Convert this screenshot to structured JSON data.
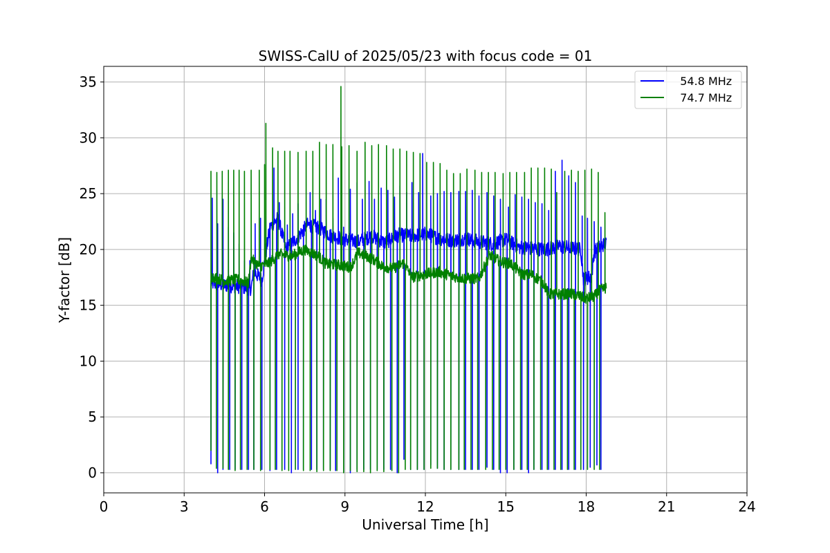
{
  "chart_data": {
    "type": "line",
    "title": "SWISS-CalU of 2025/05/23 with focus code = 01",
    "xlabel": "Universal Time [h]",
    "ylabel": "Y-factor [dB]",
    "xlim": [
      0,
      24
    ],
    "ylim": [
      -1.8,
      36.4
    ],
    "xticks": [
      0,
      3,
      6,
      9,
      12,
      15,
      18,
      21,
      24
    ],
    "yticks": [
      0,
      5,
      10,
      15,
      20,
      25,
      30,
      35
    ],
    "grid": true,
    "legend_position": "top-right",
    "series": [
      {
        "name": "   54.8 MHz",
        "color": "#0000ff",
        "baseline": [
          [
            4.0,
            17.0
          ],
          [
            4.5,
            16.8
          ],
          [
            5.0,
            16.7
          ],
          [
            5.5,
            16.5
          ],
          [
            5.6,
            18.0
          ],
          [
            5.9,
            17.3
          ],
          [
            6.2,
            22.0
          ],
          [
            6.5,
            22.8
          ],
          [
            6.8,
            20.0
          ],
          [
            7.2,
            21.0
          ],
          [
            7.6,
            22.2
          ],
          [
            8.0,
            22.0
          ],
          [
            8.5,
            21.2
          ],
          [
            9.0,
            20.9
          ],
          [
            9.5,
            20.7
          ],
          [
            10.0,
            21.2
          ],
          [
            10.5,
            20.6
          ],
          [
            11.0,
            21.3
          ],
          [
            11.5,
            21.2
          ],
          [
            12.0,
            21.4
          ],
          [
            12.5,
            21.0
          ],
          [
            13.0,
            20.8
          ],
          [
            13.5,
            21.0
          ],
          [
            14.0,
            20.7
          ],
          [
            14.5,
            20.5
          ],
          [
            15.0,
            20.9
          ],
          [
            15.5,
            20.2
          ],
          [
            16.0,
            20.1
          ],
          [
            16.5,
            20.0
          ],
          [
            17.0,
            20.3
          ],
          [
            17.5,
            20.1
          ],
          [
            17.8,
            20.0
          ],
          [
            17.9,
            17.3
          ],
          [
            18.2,
            17.6
          ],
          [
            18.3,
            19.8
          ],
          [
            18.6,
            20.4
          ],
          [
            18.75,
            20.5
          ]
        ],
        "spikes": [
          [
            4.05,
            24.6
          ],
          [
            4.25,
            22.3
          ],
          [
            4.45,
            24.5
          ],
          [
            4.65,
            22.0
          ],
          [
            4.85,
            21.5
          ],
          [
            5.05,
            20.5
          ],
          [
            5.25,
            19.0
          ],
          [
            5.45,
            19.0
          ],
          [
            5.65,
            22.3
          ],
          [
            5.85,
            22.8
          ],
          [
            6.05,
            20.5
          ],
          [
            6.35,
            27.3
          ],
          [
            6.55,
            24.2
          ],
          [
            6.85,
            22.2
          ],
          [
            7.05,
            23.2
          ],
          [
            7.25,
            24.1
          ],
          [
            7.45,
            22.2
          ],
          [
            7.7,
            25.1
          ],
          [
            7.9,
            23.5
          ],
          [
            8.1,
            24.5
          ],
          [
            8.3,
            24.5
          ],
          [
            8.55,
            22.8
          ],
          [
            8.75,
            26.4
          ],
          [
            8.95,
            22.0
          ],
          [
            9.2,
            25.4
          ],
          [
            9.45,
            26.0
          ],
          [
            9.65,
            24.5
          ],
          [
            9.9,
            26.1
          ],
          [
            10.1,
            24.5
          ],
          [
            10.35,
            25.5
          ],
          [
            10.6,
            25.3
          ],
          [
            10.85,
            24.7
          ],
          [
            11.05,
            25.7
          ],
          [
            11.3,
            25.1
          ],
          [
            11.5,
            26.0
          ],
          [
            11.75,
            25.1
          ],
          [
            11.9,
            28.6
          ],
          [
            12.2,
            24.8
          ],
          [
            12.45,
            25.0
          ],
          [
            12.7,
            25.2
          ],
          [
            12.95,
            25.1
          ],
          [
            13.25,
            25.2
          ],
          [
            13.5,
            25.2
          ],
          [
            13.75,
            25.3
          ],
          [
            14.0,
            24.8
          ],
          [
            14.3,
            25.1
          ],
          [
            14.55,
            24.8
          ],
          [
            14.8,
            24.5
          ],
          [
            15.1,
            23.8
          ],
          [
            15.35,
            24.9
          ],
          [
            15.6,
            24.7
          ],
          [
            15.85,
            24.5
          ],
          [
            16.1,
            24.2
          ],
          [
            16.35,
            24.1
          ],
          [
            16.6,
            23.5
          ],
          [
            16.85,
            27.0
          ],
          [
            17.1,
            28.0
          ],
          [
            17.35,
            26.6
          ],
          [
            17.6,
            26.0
          ],
          [
            17.85,
            23.0
          ],
          [
            18.05,
            22.8
          ],
          [
            18.3,
            22.5
          ],
          [
            18.55,
            22.0
          ]
        ],
        "dips": [
          [
            4.0,
            0.8
          ],
          [
            4.25,
            0.0
          ],
          [
            4.45,
            0.3
          ],
          [
            4.7,
            0.3
          ],
          [
            4.9,
            0.3
          ],
          [
            5.15,
            0.3
          ],
          [
            5.4,
            0.3
          ],
          [
            5.6,
            0.3
          ],
          [
            5.9,
            0.3
          ],
          [
            6.2,
            0.2
          ],
          [
            6.45,
            0.3
          ],
          [
            6.75,
            0.3
          ],
          [
            7.0,
            0.0
          ],
          [
            7.25,
            0.3
          ],
          [
            7.45,
            0.3
          ],
          [
            7.75,
            0.3
          ],
          [
            7.95,
            0.3
          ],
          [
            8.2,
            0.3
          ],
          [
            8.45,
            0.3
          ],
          [
            8.65,
            0.2
          ],
          [
            8.95,
            0.1
          ],
          [
            9.2,
            0.0
          ],
          [
            9.45,
            0.3
          ],
          [
            9.7,
            0.3
          ],
          [
            9.95,
            0.3
          ],
          [
            10.2,
            0.3
          ],
          [
            10.45,
            0.3
          ],
          [
            10.7,
            0.3
          ],
          [
            10.95,
            0.0
          ],
          [
            11.2,
            1.2
          ],
          [
            11.45,
            0.3
          ],
          [
            11.7,
            0.3
          ],
          [
            11.95,
            0.3
          ],
          [
            12.2,
            0.7
          ],
          [
            12.45,
            0.4
          ],
          [
            12.7,
            0.3
          ],
          [
            12.95,
            0.3
          ],
          [
            13.25,
            0.3
          ],
          [
            13.5,
            0.3
          ],
          [
            13.75,
            0.3
          ],
          [
            14.0,
            0.3
          ],
          [
            14.3,
            0.5
          ],
          [
            14.55,
            0.3
          ],
          [
            14.8,
            0.0
          ],
          [
            15.05,
            0.0
          ],
          [
            15.3,
            0.3
          ],
          [
            15.6,
            0.3
          ],
          [
            15.85,
            0.0
          ],
          [
            16.05,
            0.3
          ],
          [
            16.35,
            0.3
          ],
          [
            16.6,
            0.3
          ],
          [
            16.85,
            0.3
          ],
          [
            17.1,
            0.3
          ],
          [
            17.35,
            0.3
          ],
          [
            17.6,
            0.3
          ],
          [
            17.9,
            0.3
          ],
          [
            18.15,
            0.5
          ],
          [
            18.4,
            0.7
          ],
          [
            18.55,
            0.3
          ]
        ]
      },
      {
        "name": "   74.7 MHz",
        "color": "#008000",
        "baseline": [
          [
            4.0,
            17.6
          ],
          [
            4.5,
            17.2
          ],
          [
            5.0,
            17.3
          ],
          [
            5.4,
            17.0
          ],
          [
            5.5,
            19.2
          ],
          [
            5.8,
            18.5
          ],
          [
            6.2,
            18.8
          ],
          [
            6.5,
            19.6
          ],
          [
            7.0,
            19.4
          ],
          [
            7.5,
            20.0
          ],
          [
            8.0,
            19.4
          ],
          [
            8.3,
            18.7
          ],
          [
            8.8,
            18.6
          ],
          [
            9.2,
            18.4
          ],
          [
            9.5,
            19.7
          ],
          [
            10.0,
            19.2
          ],
          [
            10.4,
            18.5
          ],
          [
            10.8,
            18.3
          ],
          [
            11.2,
            18.8
          ],
          [
            11.5,
            17.5
          ],
          [
            12.0,
            17.8
          ],
          [
            12.5,
            18.0
          ],
          [
            13.0,
            17.6
          ],
          [
            13.5,
            17.4
          ],
          [
            14.0,
            17.4
          ],
          [
            14.4,
            19.5
          ],
          [
            14.8,
            18.9
          ],
          [
            15.2,
            18.7
          ],
          [
            15.6,
            17.8
          ],
          [
            16.0,
            17.7
          ],
          [
            16.4,
            17.0
          ],
          [
            16.6,
            16.0
          ],
          [
            17.0,
            16.0
          ],
          [
            17.5,
            16.0
          ],
          [
            18.0,
            15.6
          ],
          [
            18.3,
            15.8
          ],
          [
            18.5,
            16.3
          ],
          [
            18.75,
            16.6
          ]
        ],
        "spikes": [
          [
            4.0,
            27.0
          ],
          [
            4.22,
            26.9
          ],
          [
            4.42,
            27.0
          ],
          [
            4.65,
            27.1
          ],
          [
            4.85,
            27.1
          ],
          [
            5.05,
            27.1
          ],
          [
            5.25,
            27.0
          ],
          [
            5.5,
            27.1
          ],
          [
            5.8,
            27.1
          ],
          [
            6.0,
            27.6
          ],
          [
            6.05,
            31.3
          ],
          [
            6.3,
            29.1
          ],
          [
            6.5,
            28.8
          ],
          [
            6.75,
            28.8
          ],
          [
            6.95,
            28.8
          ],
          [
            7.25,
            28.7
          ],
          [
            7.55,
            28.8
          ],
          [
            7.8,
            28.8
          ],
          [
            8.05,
            29.6
          ],
          [
            8.3,
            29.4
          ],
          [
            8.55,
            29.4
          ],
          [
            8.85,
            34.6
          ],
          [
            8.88,
            29.2
          ],
          [
            9.15,
            29.3
          ],
          [
            9.45,
            28.8
          ],
          [
            9.75,
            29.6
          ],
          [
            10.0,
            29.3
          ],
          [
            10.25,
            29.4
          ],
          [
            10.55,
            29.3
          ],
          [
            10.8,
            29.0
          ],
          [
            11.05,
            29.0
          ],
          [
            11.3,
            28.8
          ],
          [
            11.55,
            28.7
          ],
          [
            11.8,
            28.6
          ],
          [
            12.05,
            27.8
          ],
          [
            12.3,
            27.8
          ],
          [
            12.55,
            27.7
          ],
          [
            12.8,
            27.1
          ],
          [
            13.05,
            26.8
          ],
          [
            13.3,
            26.8
          ],
          [
            13.55,
            27.2
          ],
          [
            13.85,
            27.1
          ],
          [
            14.1,
            26.9
          ],
          [
            14.35,
            26.9
          ],
          [
            14.6,
            26.9
          ],
          [
            14.9,
            26.8
          ],
          [
            15.15,
            26.9
          ],
          [
            15.4,
            26.9
          ],
          [
            15.7,
            26.9
          ],
          [
            15.95,
            27.3
          ],
          [
            16.2,
            27.3
          ],
          [
            16.45,
            27.3
          ],
          [
            16.7,
            27.2
          ],
          [
            16.9,
            25.1
          ],
          [
            17.2,
            27.0
          ],
          [
            17.45,
            27.1
          ],
          [
            17.7,
            27.0
          ],
          [
            17.95,
            27.1
          ],
          [
            18.2,
            27.2
          ],
          [
            18.45,
            26.9
          ],
          [
            18.7,
            23.3
          ]
        ],
        "dips": [
          [
            4.0,
            2.0
          ],
          [
            4.2,
            0.4
          ],
          [
            4.45,
            0.4
          ],
          [
            4.65,
            0.3
          ],
          [
            4.9,
            0.2
          ],
          [
            5.1,
            0.3
          ],
          [
            5.35,
            0.3
          ],
          [
            5.6,
            0.3
          ],
          [
            5.85,
            0.2
          ],
          [
            6.2,
            0.3
          ],
          [
            6.4,
            0.3
          ],
          [
            6.65,
            0.2
          ],
          [
            6.9,
            0.2
          ],
          [
            7.15,
            0.3
          ],
          [
            7.45,
            0.2
          ],
          [
            7.7,
            0.2
          ],
          [
            7.95,
            0.1
          ],
          [
            8.2,
            0.2
          ],
          [
            8.45,
            0.2
          ],
          [
            8.7,
            0.2
          ],
          [
            8.95,
            0.0
          ],
          [
            9.2,
            0.2
          ],
          [
            9.45,
            0.1
          ],
          [
            9.7,
            0.1
          ],
          [
            9.95,
            0.0
          ],
          [
            10.2,
            0.2
          ],
          [
            10.45,
            0.1
          ],
          [
            10.75,
            0.2
          ],
          [
            11.0,
            0.0
          ],
          [
            11.25,
            0.3
          ],
          [
            11.45,
            0.3
          ],
          [
            11.7,
            0.3
          ],
          [
            11.95,
            0.3
          ],
          [
            12.2,
            0.4
          ],
          [
            12.45,
            0.4
          ],
          [
            12.7,
            0.3
          ],
          [
            12.95,
            0.3
          ],
          [
            13.25,
            0.3
          ],
          [
            13.45,
            0.3
          ],
          [
            13.7,
            0.3
          ],
          [
            13.95,
            0.3
          ],
          [
            14.25,
            0.3
          ],
          [
            14.5,
            0.3
          ],
          [
            14.75,
            0.3
          ],
          [
            15.0,
            0.3
          ],
          [
            15.3,
            0.3
          ],
          [
            15.55,
            0.3
          ],
          [
            15.8,
            0.3
          ],
          [
            16.05,
            0.3
          ],
          [
            16.3,
            0.3
          ],
          [
            16.55,
            0.3
          ],
          [
            16.8,
            0.3
          ],
          [
            17.05,
            0.3
          ],
          [
            17.3,
            0.3
          ],
          [
            17.55,
            0.3
          ],
          [
            17.8,
            0.3
          ],
          [
            18.05,
            0.3
          ],
          [
            18.3,
            0.3
          ],
          [
            18.5,
            0.3
          ]
        ]
      }
    ]
  }
}
